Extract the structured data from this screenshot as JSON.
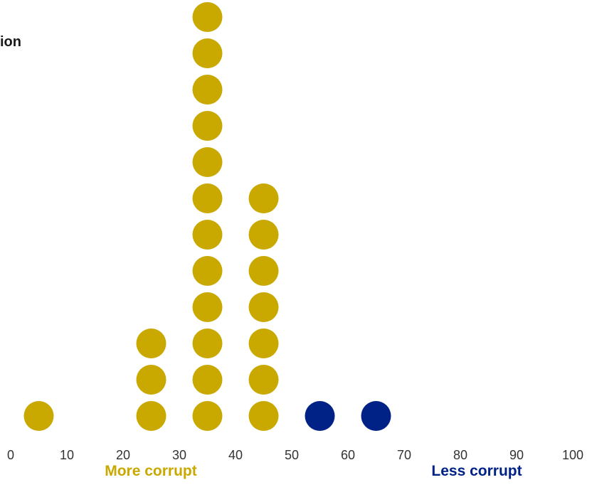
{
  "chart_data": {
    "type": "scatter",
    "title": "ion",
    "xlabel": "",
    "ylabel": "",
    "xlim": [
      0,
      100
    ],
    "x_ticks": [
      "0",
      "10",
      "20",
      "30",
      "40",
      "50",
      "60",
      "70",
      "80",
      "90",
      "100"
    ],
    "grid": false,
    "legend": "none",
    "columns": [
      {
        "x": 5,
        "count": 1,
        "group": "more_corrupt"
      },
      {
        "x": 25,
        "count": 3,
        "group": "more_corrupt"
      },
      {
        "x": 35,
        "count": 12,
        "group": "more_corrupt"
      },
      {
        "x": 45,
        "count": 7,
        "group": "more_corrupt"
      },
      {
        "x": 55,
        "count": 1,
        "group": "less_corrupt"
      },
      {
        "x": 65,
        "count": 1,
        "group": "less_corrupt"
      }
    ],
    "labels": {
      "more_corrupt": "More corrupt",
      "less_corrupt": "Less corrupt"
    }
  },
  "colors": {
    "more_corrupt": "#C9A800",
    "less_corrupt": "#002287",
    "tick_text": "#333333"
  }
}
